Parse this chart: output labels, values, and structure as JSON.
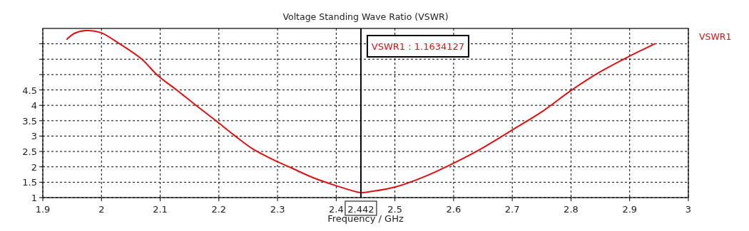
{
  "chart_data": {
    "type": "line",
    "title": "Voltage Standing Wave Ratio (VSWR)",
    "xlabel": "Frequency / GHz",
    "xlim": [
      1.9,
      3
    ],
    "xticks": [
      1.9,
      2,
      2.1,
      2.2,
      2.3,
      2.4,
      2.5,
      2.6,
      2.7,
      2.8,
      2.9,
      3
    ],
    "ylim": [
      1,
      6.5
    ],
    "yticks": [
      1,
      1.5,
      2,
      2.5,
      3,
      3.5,
      4,
      4.5,
      {
        "value": 5,
        "label": null
      },
      {
        "value": 5.5,
        "label": null
      },
      {
        "value": 6,
        "label": null
      }
    ],
    "grid": true,
    "legend": "right",
    "line_style": "solid",
    "marker": "none",
    "ref_lines": [
      {
        "axis": "x",
        "value": 2.442,
        "label": "2.442",
        "color": "#000000"
      }
    ],
    "annotations": [
      "VSWR1 : 1.1634127"
    ],
    "series": [
      {
        "name": "VSWR1",
        "color": "#dd1111",
        "x": [
          1.941,
          1.955,
          1.974,
          1.998,
          2.031,
          2.068,
          2.096,
          2.128,
          2.161,
          2.195,
          2.226,
          2.258,
          2.292,
          2.323,
          2.363,
          2.404,
          2.432,
          2.442,
          2.46,
          2.5,
          2.55,
          2.6,
          2.648,
          2.7,
          2.751,
          2.8,
          2.849,
          2.9,
          2.943
        ],
        "values": [
          6.15,
          6.35,
          6.43,
          6.37,
          6.0,
          5.51,
          4.97,
          4.5,
          4.0,
          3.5,
          3.03,
          2.58,
          2.24,
          1.97,
          1.63,
          1.36,
          1.2,
          1.16,
          1.2,
          1.34,
          1.68,
          2.12,
          2.6,
          3.2,
          3.8,
          4.48,
          5.08,
          5.6,
          6.0
        ]
      }
    ]
  }
}
